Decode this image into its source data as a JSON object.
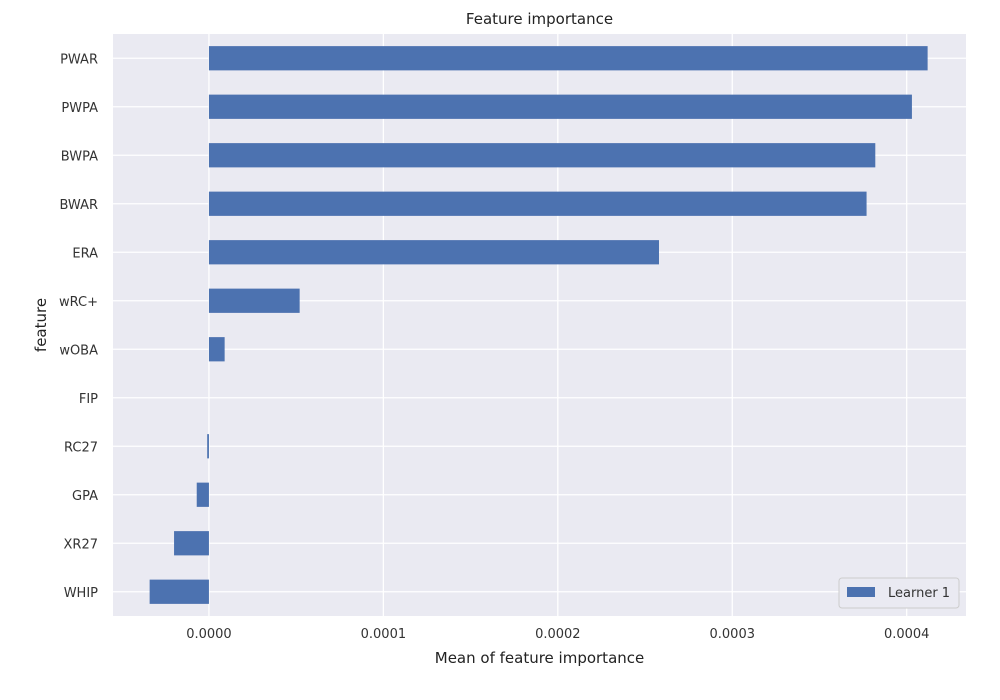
{
  "chart_data": {
    "type": "bar",
    "orientation": "horizontal",
    "title": "Feature importance",
    "xlabel": "Mean of feature importance",
    "ylabel": "feature",
    "categories": [
      "PWAR",
      "PWPA",
      "BWPA",
      "BWAR",
      "ERA",
      "wRC+",
      "wOBA",
      "FIP",
      "RC27",
      "GPA",
      "XR27",
      "WHIP"
    ],
    "series": [
      {
        "name": "Learner 1",
        "color": "#4c72b0",
        "values": [
          0.000412,
          0.000403,
          0.000382,
          0.000377,
          0.000258,
          5.2e-05,
          9e-06,
          0.0,
          -1e-06,
          -7e-06,
          -2e-05,
          -3.4e-05
        ]
      }
    ],
    "xlim": [
      -5.5e-05,
      0.000434
    ],
    "xticks": [
      0.0,
      0.0001,
      0.0002,
      0.0003,
      0.0004
    ],
    "xtick_labels": [
      "0.0000",
      "0.0001",
      "0.0002",
      "0.0003",
      "0.0004"
    ],
    "grid": true,
    "background": "#eaeaf2",
    "legend_position": "bottom-right"
  }
}
